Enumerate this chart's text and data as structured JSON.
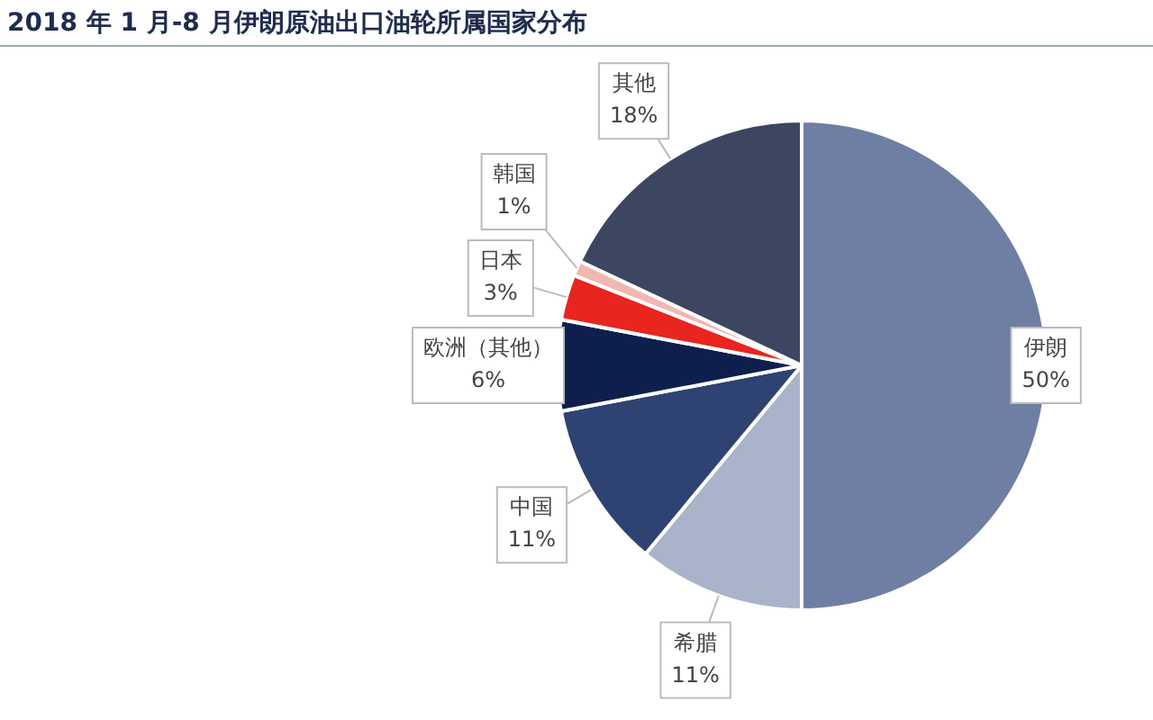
{
  "chart_data": {
    "type": "pie",
    "title": "2018 年 1 月-8 月伊朗原油出口油轮所属国家分布",
    "categories": [
      "伊朗",
      "希腊",
      "中国",
      "欧洲（其他）",
      "日本",
      "韩国",
      "其他"
    ],
    "values": [
      50,
      11,
      11,
      6,
      3,
      1,
      18
    ],
    "value_labels": [
      "50%",
      "11%",
      "11%",
      "6%",
      "3%",
      "1%",
      "18%"
    ],
    "colors": [
      "#6f7fa3",
      "#a9b3c9",
      "#2e4372",
      "#0f1f4d",
      "#e8251f",
      "#f0b8b0",
      "#3c4660"
    ],
    "legend": false
  }
}
